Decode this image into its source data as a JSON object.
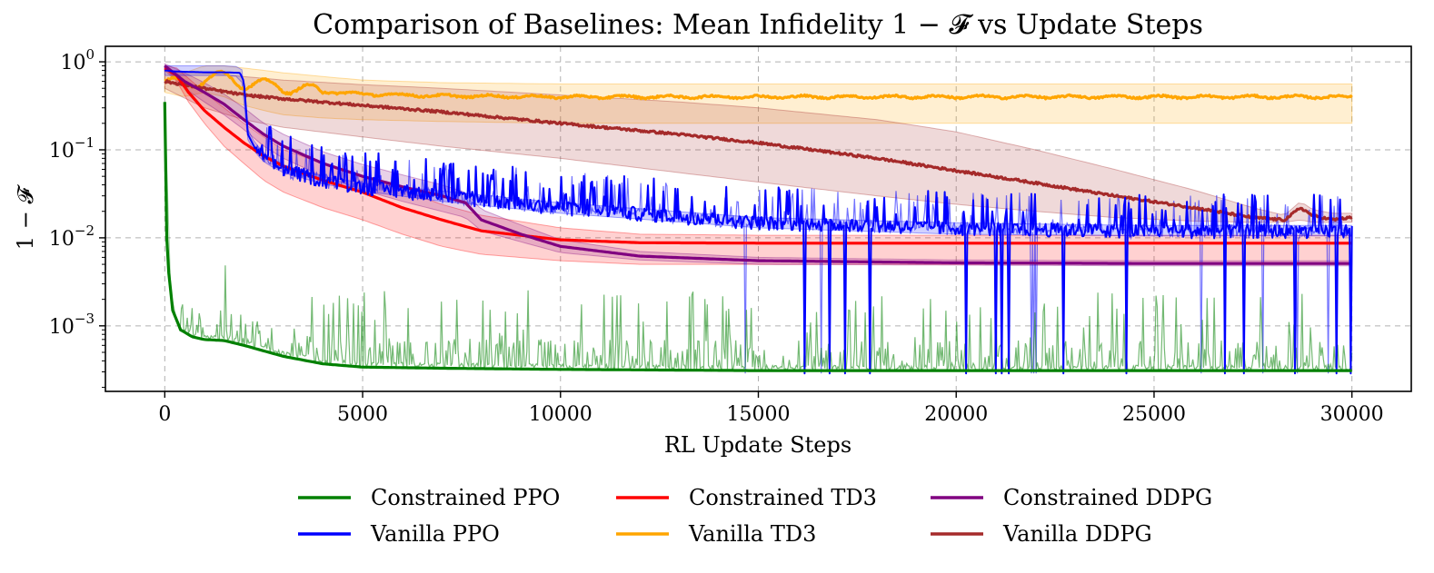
{
  "chart_data": {
    "type": "line",
    "title": "Comparison of Baselines: Mean Infidelity 1 − 𝓕 vs Update Steps",
    "xlabel": "RL Update Steps",
    "ylabel": "1 − 𝓕",
    "yscale": "log",
    "xlim": [
      -1500,
      31500
    ],
    "ylim": [
      0.00018,
      1.5
    ],
    "xticks": [
      0,
      5000,
      10000,
      15000,
      20000,
      25000,
      30000
    ],
    "xtick_labels": [
      "0",
      "5000",
      "10000",
      "15000",
      "20000",
      "25000",
      "30000"
    ],
    "yticks": [
      0.001,
      0.01,
      0.1,
      1
    ],
    "ytick_labels": [
      {
        "base": "10",
        "exp": "−3"
      },
      {
        "base": "10",
        "exp": "−2"
      },
      {
        "base": "10",
        "exp": "−1"
      },
      {
        "base": "10",
        "exp": "0"
      }
    ],
    "grid": true,
    "legend_position": "bottom-center",
    "series": [
      {
        "name": "Constrained PPO",
        "color": "#008000",
        "x": [
          0,
          50,
          100,
          200,
          400,
          700,
          1000,
          1500,
          2000,
          3000,
          4000,
          5000,
          7000,
          10000,
          15000,
          20000,
          25000,
          30000
        ],
        "values": [
          0.35,
          0.01,
          0.004,
          0.0015,
          0.0009,
          0.00075,
          0.0007,
          0.00068,
          0.0006,
          0.00045,
          0.00037,
          0.00034,
          0.00033,
          0.00032,
          0.00031,
          0.00031,
          0.00031,
          0.00031
        ],
        "band_low": [
          0.35,
          0.01,
          0.004,
          0.0015,
          0.0009,
          0.00075,
          0.0007,
          0.00068,
          0.0006,
          0.00045,
          0.00037,
          0.00034,
          0.00033,
          0.00032,
          0.00031,
          0.00031,
          0.00031,
          0.00031
        ],
        "band_high": [
          0.35,
          0.01,
          0.004,
          0.0015,
          0.0009,
          0.00075,
          0.0007,
          0.00068,
          0.0006,
          0.00045,
          0.00037,
          0.00034,
          0.00033,
          0.00032,
          0.00031,
          0.00031,
          0.00031,
          0.00031
        ],
        "noise": "spikes-up"
      },
      {
        "name": "Vanilla PPO",
        "color": "#0000ff",
        "x": [
          0,
          200,
          500,
          1000,
          1500,
          1900,
          2000,
          2100,
          2300,
          2600,
          3000,
          4000,
          5000,
          7000,
          10000,
          15000,
          20000,
          25000,
          30000
        ],
        "values": [
          0.8,
          0.78,
          0.77,
          0.76,
          0.76,
          0.75,
          0.6,
          0.15,
          0.1,
          0.075,
          0.06,
          0.045,
          0.038,
          0.03,
          0.022,
          0.015,
          0.013,
          0.012,
          0.012
        ],
        "band_low": [
          0.7,
          0.7,
          0.7,
          0.7,
          0.7,
          0.68,
          0.5,
          0.13,
          0.09,
          0.068,
          0.055,
          0.041,
          0.034,
          0.026,
          0.019,
          0.013,
          0.011,
          0.0105,
          0.0105
        ],
        "band_high": [
          0.9,
          0.9,
          0.9,
          0.9,
          0.9,
          0.88,
          0.75,
          0.17,
          0.115,
          0.085,
          0.068,
          0.05,
          0.042,
          0.034,
          0.025,
          0.017,
          0.0148,
          0.0138,
          0.0138
        ],
        "noise": "spikes-both"
      },
      {
        "name": "Constrained TD3",
        "color": "#ff0000",
        "x": [
          0,
          300,
          600,
          1000,
          1500,
          2000,
          2500,
          3000,
          4000,
          5000,
          6000,
          7000,
          8000,
          10000,
          12000,
          15000,
          20000,
          25000,
          30000
        ],
        "values": [
          0.85,
          0.7,
          0.45,
          0.28,
          0.18,
          0.12,
          0.085,
          0.065,
          0.045,
          0.033,
          0.022,
          0.016,
          0.012,
          0.0095,
          0.0088,
          0.0087,
          0.0087,
          0.0087,
          0.0087
        ],
        "band_low": [
          0.8,
          0.6,
          0.35,
          0.2,
          0.11,
          0.07,
          0.045,
          0.033,
          0.022,
          0.016,
          0.011,
          0.008,
          0.0065,
          0.0055,
          0.005,
          0.005,
          0.005,
          0.005,
          0.005
        ],
        "band_high": [
          0.9,
          0.85,
          0.65,
          0.45,
          0.3,
          0.2,
          0.14,
          0.1,
          0.07,
          0.05,
          0.035,
          0.024,
          0.018,
          0.013,
          0.011,
          0.0107,
          0.0107,
          0.0107,
          0.0107
        ],
        "noise": "none"
      },
      {
        "name": "Vanilla TD3",
        "color": "#ffa500",
        "x": [
          0,
          500,
          1000,
          1500,
          2000,
          2500,
          3000,
          4000,
          5000,
          7000,
          10000,
          15000,
          20000,
          25000,
          30000
        ],
        "values": [
          0.6,
          0.55,
          0.65,
          0.68,
          0.58,
          0.55,
          0.52,
          0.46,
          0.43,
          0.41,
          0.4,
          0.4,
          0.4,
          0.4,
          0.4
        ],
        "band_low": [
          0.45,
          0.4,
          0.45,
          0.4,
          0.32,
          0.28,
          0.25,
          0.23,
          0.22,
          0.21,
          0.2,
          0.2,
          0.2,
          0.2,
          0.2
        ],
        "band_high": [
          0.8,
          0.75,
          0.9,
          0.9,
          0.85,
          0.8,
          0.75,
          0.68,
          0.62,
          0.58,
          0.56,
          0.56,
          0.56,
          0.56,
          0.56
        ],
        "noise": "wiggle"
      },
      {
        "name": "Constrained DDPG",
        "color": "#800080",
        "x": [
          0,
          500,
          1000,
          1500,
          2000,
          2500,
          3000,
          4000,
          5000,
          6000,
          7000,
          7600,
          8000,
          9000,
          10000,
          12000,
          15000,
          20000,
          25000,
          30000
        ],
        "values": [
          0.9,
          0.6,
          0.45,
          0.33,
          0.22,
          0.15,
          0.11,
          0.07,
          0.05,
          0.038,
          0.03,
          0.025,
          0.016,
          0.011,
          0.008,
          0.0062,
          0.0055,
          0.0052,
          0.0051,
          0.0051
        ],
        "band_low": [
          0.85,
          0.5,
          0.35,
          0.25,
          0.17,
          0.11,
          0.08,
          0.05,
          0.035,
          0.026,
          0.02,
          0.017,
          0.012,
          0.009,
          0.0068,
          0.0056,
          0.005,
          0.0049,
          0.0048,
          0.0048
        ],
        "band_high": [
          0.95,
          0.75,
          0.58,
          0.43,
          0.3,
          0.2,
          0.15,
          0.095,
          0.068,
          0.052,
          0.04,
          0.033,
          0.021,
          0.014,
          0.0095,
          0.007,
          0.006,
          0.0056,
          0.0055,
          0.0055
        ],
        "noise": "none"
      },
      {
        "name": "Vanilla DDPG",
        "color": "#a52a2a",
        "x": [
          0,
          1000,
          2000,
          3000,
          5000,
          7000,
          10000,
          13000,
          15000,
          18000,
          20000,
          22000,
          24000,
          26000,
          27500,
          28300,
          28700,
          29000,
          29500,
          30000
        ],
        "values": [
          0.6,
          0.5,
          0.42,
          0.38,
          0.32,
          0.27,
          0.2,
          0.15,
          0.12,
          0.08,
          0.058,
          0.042,
          0.03,
          0.022,
          0.017,
          0.016,
          0.022,
          0.018,
          0.016,
          0.017
        ],
        "band_low": [
          0.5,
          0.3,
          0.22,
          0.18,
          0.14,
          0.11,
          0.08,
          0.055,
          0.043,
          0.03,
          0.024,
          0.02,
          0.017,
          0.0155,
          0.015,
          0.015,
          0.016,
          0.015,
          0.015,
          0.015
        ],
        "band_high": [
          0.8,
          0.75,
          0.68,
          0.62,
          0.55,
          0.5,
          0.42,
          0.35,
          0.3,
          0.22,
          0.16,
          0.1,
          0.06,
          0.035,
          0.022,
          0.018,
          0.026,
          0.021,
          0.019,
          0.019
        ],
        "noise": "small"
      }
    ]
  }
}
